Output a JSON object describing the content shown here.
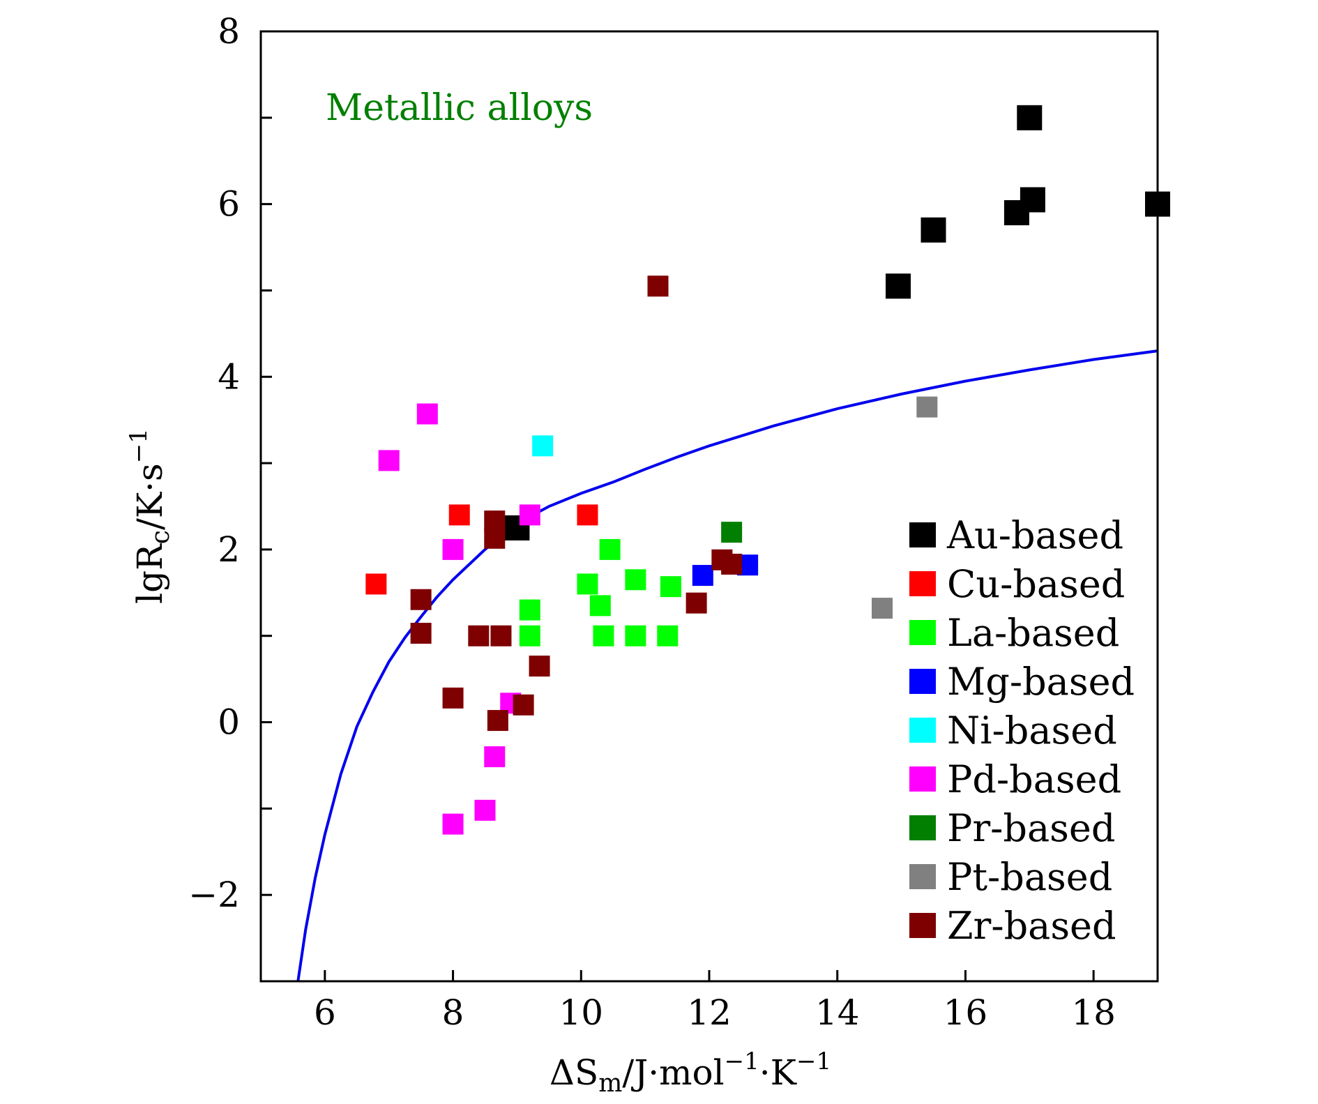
{
  "chart_data": {
    "type": "scatter",
    "annotation": "Metallic alloys",
    "annotation_color": "#007f00",
    "xlabel": {
      "main": "ΔS",
      "sub": "m",
      "rest": "/J·mol",
      "sup1": "−1",
      "mid": "·K",
      "sup2": "−1"
    },
    "ylabel": {
      "main": "lgR",
      "sub": "c",
      "rest": "/K·s",
      "sup": "−1"
    },
    "xlim": [
      5,
      19
    ],
    "ylim": [
      -3,
      8
    ],
    "xticks": [
      6,
      8,
      10,
      12,
      14,
      16,
      18
    ],
    "yticks": [
      -2,
      0,
      2,
      4,
      6,
      8
    ],
    "ytick_labels": [
      "−2",
      "0",
      "2",
      "4",
      "6",
      "8"
    ],
    "legend_position": "right-center",
    "curve": {
      "color": "#0000ee",
      "points": [
        [
          5.58,
          -3
        ],
        [
          5.7,
          -2.4
        ],
        [
          5.85,
          -1.8
        ],
        [
          6.0,
          -1.3
        ],
        [
          6.25,
          -0.6
        ],
        [
          6.5,
          -0.05
        ],
        [
          6.75,
          0.35
        ],
        [
          7.0,
          0.7
        ],
        [
          7.25,
          0.98
        ],
        [
          7.5,
          1.22
        ],
        [
          7.75,
          1.45
        ],
        [
          8.0,
          1.65
        ],
        [
          8.5,
          2.0
        ],
        [
          9.0,
          2.3
        ],
        [
          9.5,
          2.5
        ],
        [
          10.0,
          2.65
        ],
        [
          10.5,
          2.78
        ],
        [
          11.0,
          2.93
        ],
        [
          11.5,
          3.07
        ],
        [
          12.0,
          3.2
        ],
        [
          13.0,
          3.43
        ],
        [
          14.0,
          3.63
        ],
        [
          15.0,
          3.8
        ],
        [
          16.0,
          3.95
        ],
        [
          17.0,
          4.08
        ],
        [
          18.0,
          4.2
        ],
        [
          19.0,
          4.3
        ]
      ]
    },
    "series": [
      {
        "name": "Au-based",
        "color": "#000000",
        "points": [
          [
            17.0,
            7.0
          ],
          [
            16.8,
            5.9
          ],
          [
            17.05,
            6.05
          ],
          [
            19.0,
            6.0
          ],
          [
            15.5,
            5.7
          ],
          [
            14.95,
            5.05
          ],
          [
            9.0,
            2.25
          ]
        ]
      },
      {
        "name": "Cu-based",
        "color": "#ff0000",
        "points": [
          [
            6.8,
            1.6
          ],
          [
            8.1,
            2.4
          ],
          [
            10.1,
            2.4
          ]
        ]
      },
      {
        "name": "La-based",
        "color": "#00ff00",
        "points": [
          [
            9.2,
            1.3
          ],
          [
            9.2,
            1.0
          ],
          [
            10.1,
            1.6
          ],
          [
            10.3,
            1.35
          ],
          [
            10.45,
            2.0
          ],
          [
            10.35,
            1.0
          ],
          [
            10.85,
            1.65
          ],
          [
            10.85,
            1.0
          ],
          [
            11.4,
            1.57
          ],
          [
            11.35,
            1.0
          ]
        ]
      },
      {
        "name": "Mg-based",
        "color": "#0000ff",
        "points": [
          [
            11.9,
            1.7
          ],
          [
            12.6,
            1.82
          ]
        ]
      },
      {
        "name": "Ni-based",
        "color": "#00ffff",
        "points": [
          [
            9.4,
            3.2
          ]
        ]
      },
      {
        "name": "Pd-based",
        "color": "#ff00ff",
        "points": [
          [
            7.0,
            3.03
          ],
          [
            7.6,
            3.57
          ],
          [
            8.0,
            2.0
          ],
          [
            9.2,
            2.4
          ],
          [
            8.9,
            0.22
          ],
          [
            8.65,
            -0.4
          ],
          [
            8.5,
            -1.02
          ],
          [
            8.0,
            -1.18
          ]
        ]
      },
      {
        "name": "Pr-based",
        "color": "#007f00",
        "points": [
          [
            12.35,
            2.2
          ]
        ]
      },
      {
        "name": "Pt-based",
        "color": "#808080",
        "points": [
          [
            15.4,
            3.65
          ],
          [
            14.7,
            1.32
          ]
        ]
      },
      {
        "name": "Zr-based",
        "color": "#7f0000",
        "points": [
          [
            11.2,
            5.05
          ],
          [
            8.65,
            2.33
          ],
          [
            8.65,
            2.13
          ],
          [
            7.5,
            1.42
          ],
          [
            7.5,
            1.03
          ],
          [
            8.4,
            1.0
          ],
          [
            8.75,
            1.0
          ],
          [
            9.35,
            0.65
          ],
          [
            8.0,
            0.28
          ],
          [
            9.1,
            0.2
          ],
          [
            8.7,
            0.02
          ],
          [
            11.8,
            1.38
          ],
          [
            12.2,
            1.88
          ],
          [
            12.35,
            1.83
          ]
        ]
      }
    ]
  }
}
